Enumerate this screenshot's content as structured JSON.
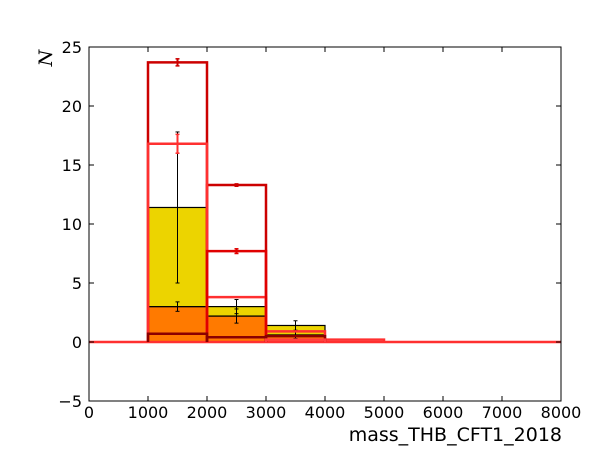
{
  "chart_data": {
    "type": "bar",
    "xlabel": "mass_THB_CFT1_2018",
    "ylabel": "N",
    "xlim": [
      0,
      8000
    ],
    "ylim": [
      -5,
      25
    ],
    "xticks": [
      0,
      1000,
      2000,
      3000,
      4000,
      5000,
      6000,
      7000,
      8000
    ],
    "yticks": [
      -5,
      0,
      5,
      10,
      15,
      20,
      25
    ],
    "grid": false,
    "bins": [
      [
        1000,
        2000
      ],
      [
        2000,
        3000
      ],
      [
        3000,
        4000
      ],
      [
        4000,
        5000
      ]
    ],
    "stacked_series": [
      {
        "color": "#ff7a00",
        "values": [
          3.0,
          2.2,
          0.6,
          0.0
        ]
      },
      {
        "color": "#ecd400",
        "values": [
          8.4,
          0.8,
          0.8,
          0.0
        ]
      }
    ],
    "stack_errorbars": [
      {
        "x": 1500,
        "y": 3.0,
        "err": 0.4
      },
      {
        "x": 1500,
        "y": 11.4,
        "err": 6.4
      },
      {
        "x": 2500,
        "y": 2.2,
        "err": 0.6
      },
      {
        "x": 2500,
        "y": 3.0,
        "err": 0.6
      },
      {
        "x": 3500,
        "y": 0.6,
        "err": 0.3
      },
      {
        "x": 3500,
        "y": 1.4,
        "err": 0.4
      }
    ],
    "stack_edge_color": "#000000",
    "line_series": [
      {
        "color": "#cc0000",
        "values": [
          23.7,
          13.3,
          0.0,
          0.0
        ],
        "errors": [
          0.3,
          0.1,
          0.0,
          0.0
        ]
      },
      {
        "color": "#ff3030",
        "values": [
          16.8,
          3.8,
          0.9,
          0.2
        ],
        "errors": [
          0.8,
          0.0,
          0.0,
          0.0
        ]
      },
      {
        "color": "#e00000",
        "values": [
          0.0,
          7.7,
          0.0,
          0.0
        ],
        "errors": [
          0.0,
          0.2,
          0.0,
          0.0
        ]
      },
      {
        "color": "#8b0000",
        "values": [
          0.7,
          0.4,
          0.5,
          0.0
        ],
        "errors": [
          0.0,
          0.0,
          0.0,
          0.0
        ]
      },
      {
        "color": "#ff4040",
        "values": [
          0.0,
          0.0,
          0.2,
          0.0
        ],
        "errors": [
          0.0,
          0.0,
          0.0,
          0.0
        ]
      }
    ],
    "baseline_color": "#ff3030"
  }
}
